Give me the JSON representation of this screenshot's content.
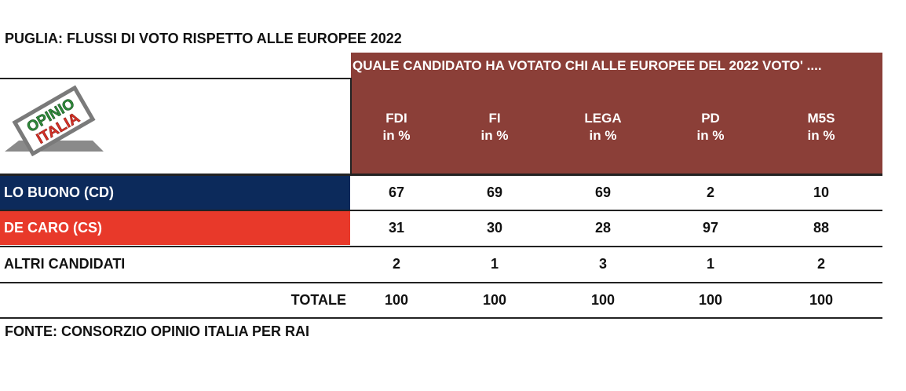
{
  "title": "PUGLIA: FLUSSI DI VOTO RISPETTO ALLE EUROPEE 2022",
  "header": "QUALE CANDIDATO HA VOTATO CHI ALLE EUROPEE DEL 2022 VOTO' ....",
  "logo": {
    "line1": "OPINIO",
    "line2": "ITALIA"
  },
  "columns": [
    {
      "name": "FDI",
      "unit": "in %"
    },
    {
      "name": "FI",
      "unit": "in %"
    },
    {
      "name": "LEGA",
      "unit": "in %"
    },
    {
      "name": "PD",
      "unit": "in %"
    },
    {
      "name": "M5S",
      "unit": "in %"
    }
  ],
  "rows": [
    {
      "label": "LO BUONO (CD)",
      "values": [
        "67",
        "69",
        "69",
        "2",
        "10"
      ]
    },
    {
      "label": "DE CARO (CS)",
      "values": [
        "31",
        "30",
        "28",
        "97",
        "88"
      ]
    },
    {
      "label": "ALTRI CANDIDATI",
      "values": [
        "2",
        "1",
        "3",
        "1",
        "2"
      ]
    }
  ],
  "total": {
    "label": "TOTALE",
    "values": [
      "100",
      "100",
      "100",
      "100",
      "100"
    ]
  },
  "source": "FONTE: CONSORZIO OPINIO ITALIA PER RAI",
  "colors": {
    "header": "#8b3f38",
    "cd": "#0c2a5b",
    "cs": "#e8392a"
  },
  "chart_data": {
    "type": "table",
    "title": "PUGLIA: FLUSSI DI VOTO RISPETTO ALLE EUROPEE 2022",
    "categories": [
      "FDI",
      "FI",
      "LEGA",
      "PD",
      "M5S"
    ],
    "series": [
      {
        "name": "LO BUONO (CD)",
        "values": [
          67,
          69,
          69,
          2,
          10
        ]
      },
      {
        "name": "DE CARO (CS)",
        "values": [
          31,
          30,
          28,
          97,
          88
        ]
      },
      {
        "name": "ALTRI CANDIDATI",
        "values": [
          2,
          1,
          3,
          1,
          2
        ]
      },
      {
        "name": "TOTALE",
        "values": [
          100,
          100,
          100,
          100,
          100
        ]
      }
    ],
    "unit": "in %"
  }
}
